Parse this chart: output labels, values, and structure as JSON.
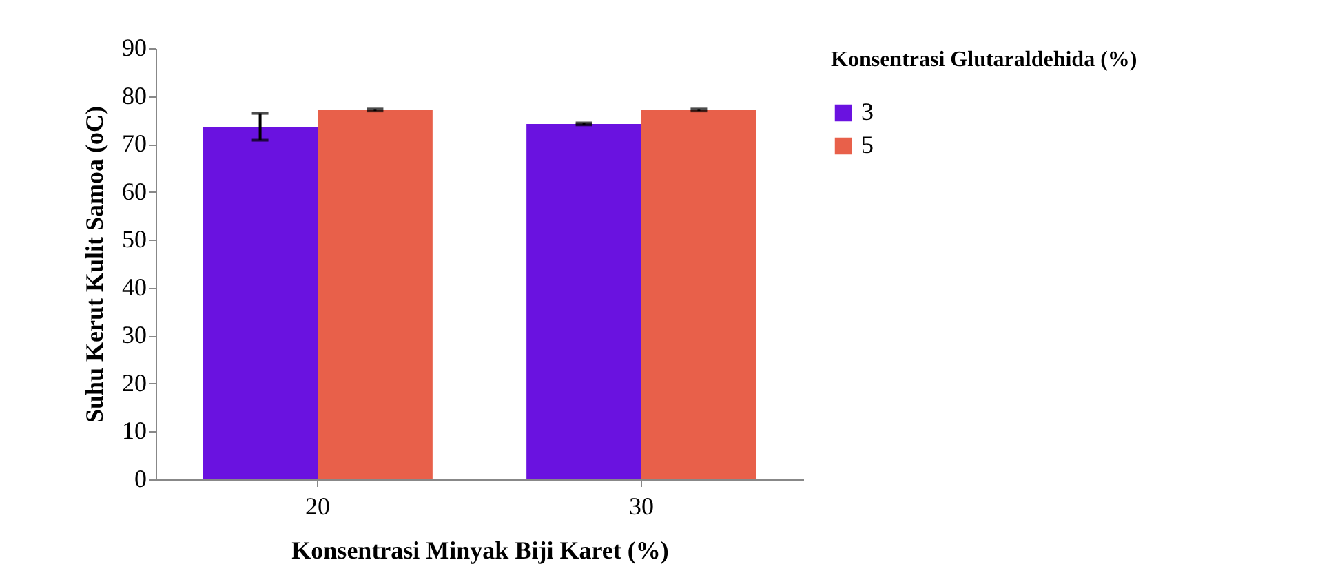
{
  "chart_data": {
    "type": "bar",
    "xlabel": "Konsentrasi Minyak Biji Karet (%)",
    "ylabel": "Suhu Kerut Kulit Samoa (oC)",
    "legend_title": "Konsentrasi Glutaraldehida (%)",
    "categories": [
      "20",
      "30"
    ],
    "series": [
      {
        "name": "3",
        "color": "#6a12e0",
        "values": [
          73.6,
          74.2
        ],
        "errors": [
          2.8,
          0.2
        ]
      },
      {
        "name": "5",
        "color": "#e8604a",
        "values": [
          77.1,
          77.1
        ],
        "errors": [
          0.2,
          0.2
        ]
      }
    ],
    "ylim": [
      0,
      90
    ],
    "yticks": [
      0,
      10,
      20,
      30,
      40,
      50,
      60,
      70,
      80,
      90
    ],
    "grid": false,
    "legend": "right"
  }
}
